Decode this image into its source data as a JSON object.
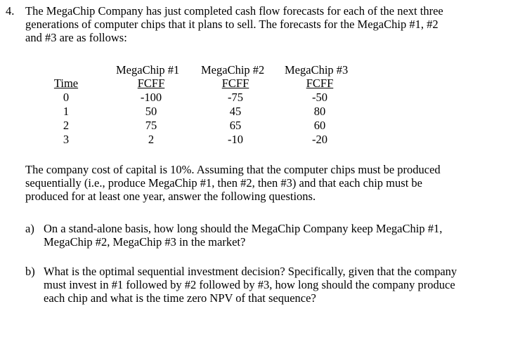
{
  "question": {
    "number": "4.",
    "intro_lines": [
      "The MegaChip Company has just completed cash flow forecasts for each of the next three",
      "generations of computer chips that it plans to sell.  The forecasts for the MegaChip #1, #2",
      "and #3 are as follows:"
    ]
  },
  "table": {
    "chip_headers": [
      "MegaChip #1",
      "MegaChip #2",
      "MegaChip #3"
    ],
    "time_header": "Time",
    "fcff_label": "FCFF",
    "times": [
      "0",
      "1",
      "2",
      "3"
    ],
    "chip1": [
      "-100",
      "50",
      "75",
      "2"
    ],
    "chip2": [
      "-75",
      "45",
      "65",
      "-10"
    ],
    "chip3": [
      "-50",
      "80",
      "60",
      "-20"
    ]
  },
  "paragraph_lines": [
    "The company cost of capital is 10%.  Assuming that the computer chips must be produced",
    "sequentially (i.e., produce MegaChip #1, then #2, then #3) and that each chip must be",
    "produced for at least one year, answer the following questions."
  ],
  "parts": [
    {
      "letter": "a)",
      "lines": [
        "On a stand-alone basis, how long should the MegaChip Company keep MegaChip #1,",
        "MegaChip #2, MegaChip #3 in the market?"
      ]
    },
    {
      "letter": "b)",
      "lines": [
        "What is the optimal sequential investment decision? Specifically, given that the company",
        "must invest in #1 followed by #2 followed by #3, how long should the company produce",
        "each chip and what is the time zero NPV of that sequence?"
      ]
    }
  ]
}
